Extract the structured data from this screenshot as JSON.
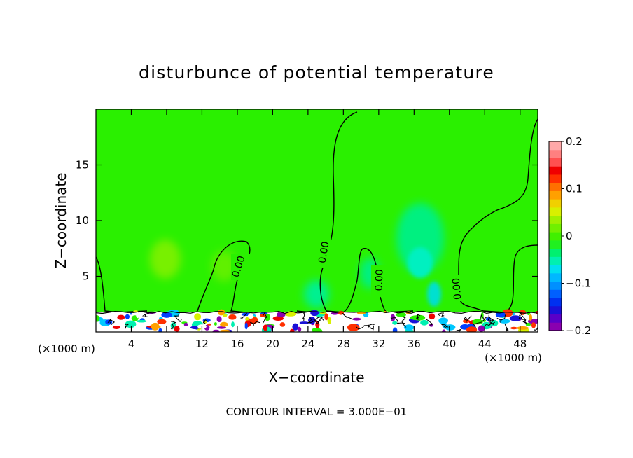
{
  "chart_data": {
    "type": "heatmap",
    "title": "disturbunce of potential temperature",
    "xlabel": "X−coordinate",
    "ylabel": "Z−coordinate",
    "x_unit_left": "(×1000 m)",
    "x_unit_right": "(×1000 m)",
    "footer": "CONTOUR INTERVAL = 3.000E−01",
    "xlim": [
      0,
      50
    ],
    "ylim": [
      0,
      20
    ],
    "xticks": [
      4,
      8,
      12,
      16,
      20,
      24,
      28,
      32,
      36,
      40,
      44,
      48
    ],
    "yticks": [
      5,
      10,
      15
    ],
    "colorbar": {
      "min": -0.2,
      "max": 0.2,
      "ticks": [
        {
          "value": 0.2,
          "label": "0.2"
        },
        {
          "value": 0.1,
          "label": "0.1"
        },
        {
          "value": 0,
          "label": "0"
        },
        {
          "value": -0.1,
          "label": "−0.1"
        },
        {
          "value": -0.2,
          "label": "−0.2"
        }
      ],
      "colors": [
        "#8a00b0",
        "#5a00c8",
        "#1a10d8",
        "#0030f0",
        "#0060ff",
        "#0090ff",
        "#00b8ff",
        "#00e0f0",
        "#00f0b0",
        "#00f070",
        "#20f020",
        "#40f000",
        "#70f000",
        "#a0f000",
        "#d8f000",
        "#f0d000",
        "#ffa000",
        "#ff7000",
        "#ff3000",
        "#f00000",
        "#ff5050",
        "#ff8080",
        "#ffa8a8"
      ]
    },
    "contour_labels": [
      "0.00",
      "0.00",
      "0.00",
      "0.00"
    ]
  }
}
